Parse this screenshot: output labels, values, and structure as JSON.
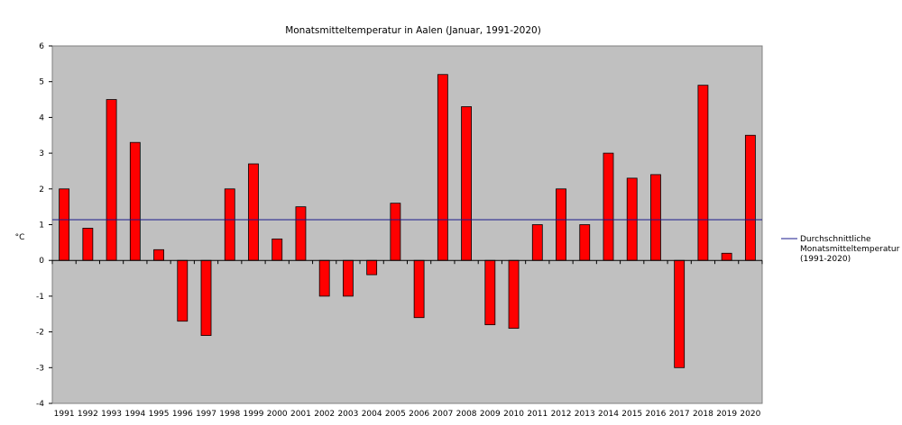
{
  "chart_data": {
    "type": "bar",
    "title": "Monatsmitteltemperatur in Aalen (Januar, 1991-2020)",
    "ylabel": "°C",
    "xlabel": "",
    "ylim": [
      -4,
      6
    ],
    "yticks": [
      -4,
      -3,
      -2,
      -1,
      0,
      1,
      2,
      3,
      4,
      5,
      6
    ],
    "categories": [
      "1991",
      "1992",
      "1993",
      "1994",
      "1995",
      "1996",
      "1997",
      "1998",
      "1999",
      "2000",
      "2001",
      "2002",
      "2003",
      "2004",
      "2005",
      "2006",
      "2007",
      "2008",
      "2009",
      "2010",
      "2011",
      "2012",
      "2013",
      "2014",
      "2015",
      "2016",
      "2017",
      "2018",
      "2019",
      "2020"
    ],
    "series": [
      {
        "values": [
          2.0,
          0.9,
          4.5,
          3.3,
          0.3,
          -1.7,
          -2.1,
          2.0,
          2.7,
          0.6,
          1.5,
          -1.0,
          -1.0,
          -0.4,
          1.6,
          -1.6,
          5.2,
          4.3,
          -1.8,
          -1.9,
          1.0,
          2.0,
          1.0,
          3.0,
          2.3,
          2.4,
          -3.0,
          4.9,
          0.2,
          3.5
        ],
        "color": "#ff0000"
      }
    ],
    "reference_line": {
      "name": "Durchschnittliche Monatsmitteltemperatur (1991-2020)",
      "value": 1.14,
      "color": "#1a1a8c"
    },
    "plot_background": "#c0c0c0",
    "grid": false,
    "legend_position": "right"
  }
}
